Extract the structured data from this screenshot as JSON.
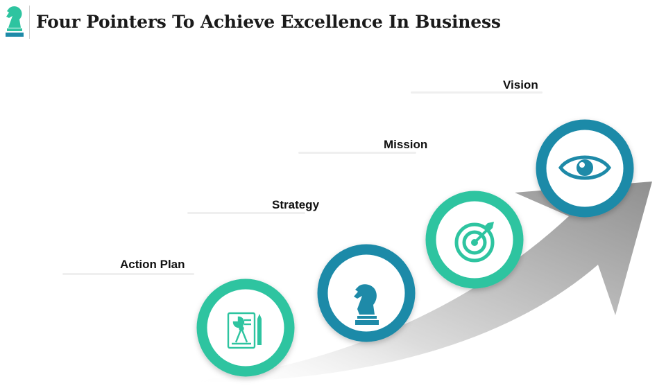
{
  "header": {
    "title": "Four Pointers To Achieve Excellence In Business",
    "logo_icon": "knight-chess-piece-icon"
  },
  "steps": [
    {
      "label": "Action Plan",
      "icon": "document-chart-compass-icon",
      "ring_color": "#2ec4a0"
    },
    {
      "label": "Strategy",
      "icon": "chess-knight-icon",
      "ring_color": "#1e8aa8"
    },
    {
      "label": "Mission",
      "icon": "target-arrow-icon",
      "ring_color": "#2ec4a0"
    },
    {
      "label": "Vision",
      "icon": "eye-icon",
      "ring_color": "#1e8aa8"
    }
  ],
  "colors": {
    "teal_green": "#2ec4a0",
    "teal_blue": "#1e8aa8",
    "arrow_gray": "#9a9a9a",
    "title_text": "#1a1a1a"
  }
}
